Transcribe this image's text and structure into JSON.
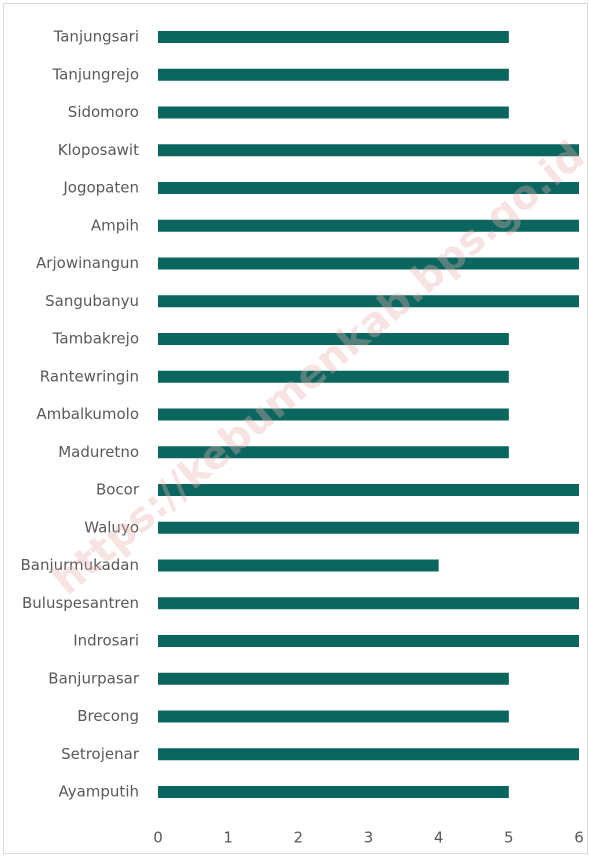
{
  "chart_data": {
    "type": "bar",
    "orientation": "horizontal",
    "watermark": "https://kebumenkab.bps.go.id",
    "categories": [
      "Tanjungsari",
      "Tanjungrejo",
      "Sidomoro",
      "Kloposawit",
      "Jogopaten",
      "Ampih",
      "Arjowinangun",
      "Sangubanyu",
      "Tambakrejo",
      "Rantewringin",
      "Ambalkumolo",
      "Maduretno",
      "Bocor",
      "Waluyo",
      "Banjurmukadan",
      "Buluspesantren",
      "Indrosari",
      "Banjurpasar",
      "Brecong",
      "Setrojenar",
      "Ayamputih"
    ],
    "values": [
      5,
      5,
      5,
      6,
      6,
      6,
      6,
      6,
      5,
      5,
      5,
      5,
      6,
      6,
      4,
      6,
      6,
      5,
      5,
      6,
      5
    ],
    "color": "#0a665f",
    "xlim": [
      0,
      6
    ],
    "xticks": [
      0,
      1,
      2,
      3,
      4,
      5,
      6
    ],
    "grid": false
  }
}
